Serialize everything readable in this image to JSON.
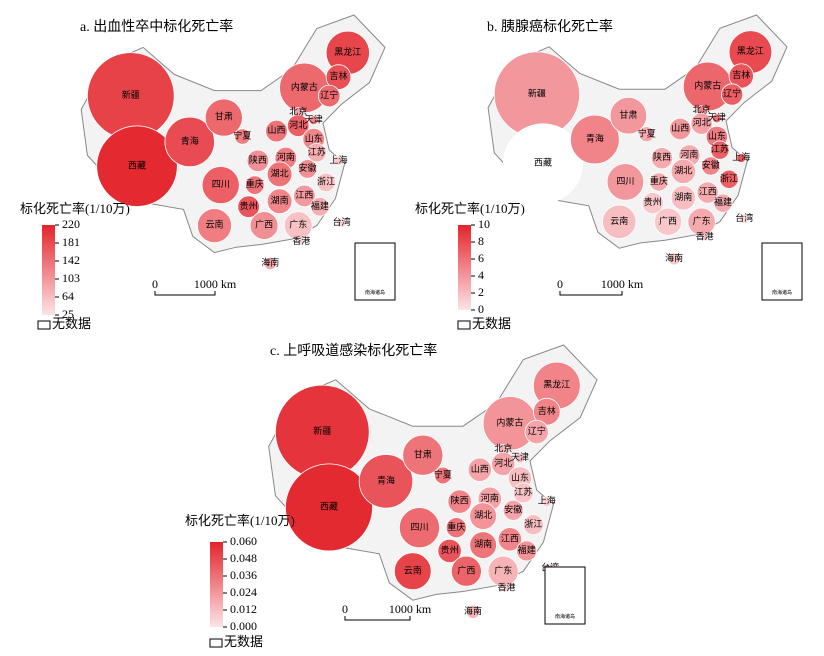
{
  "maps": [
    {
      "title": "a. 出血性卒中标化死亡率",
      "legend_title": "标化死亡率(1/10万)",
      "ticks": [
        220,
        181,
        142,
        103,
        64,
        25
      ],
      "lim": [
        25,
        220
      ],
      "color_range": [
        "#fce4e6",
        "#e3242b"
      ],
      "no_data_color": "#ffffff",
      "no_data": "无数据",
      "scale_labels": [
        "0",
        "1000 km"
      ],
      "inset": "南海诸岛",
      "regions": [
        {
          "name": "新疆",
          "value": 190
        },
        {
          "name": "西藏",
          "value": 215
        },
        {
          "name": "青海",
          "value": 180
        },
        {
          "name": "甘肃",
          "value": 150
        },
        {
          "name": "内蒙古",
          "value": 150
        },
        {
          "name": "黑龙江",
          "value": 185
        },
        {
          "name": "吉林",
          "value": 175
        },
        {
          "name": "辽宁",
          "value": 150
        },
        {
          "name": "北京",
          "value": 90
        },
        {
          "name": "天津",
          "value": 120
        },
        {
          "name": "河北",
          "value": 160
        },
        {
          "name": "山西",
          "value": 140
        },
        {
          "name": "山东",
          "value": 120
        },
        {
          "name": "宁夏",
          "value": 130
        },
        {
          "name": "陕西",
          "value": 110
        },
        {
          "name": "河南",
          "value": 130
        },
        {
          "name": "江苏",
          "value": 80
        },
        {
          "name": "上海",
          "value": 50
        },
        {
          "name": "安徽",
          "value": 110
        },
        {
          "name": "湖北",
          "value": 140
        },
        {
          "name": "四川",
          "value": 160
        },
        {
          "name": "重庆",
          "value": 140
        },
        {
          "name": "浙江",
          "value": 60
        },
        {
          "name": "江西",
          "value": 100
        },
        {
          "name": "湖南",
          "value": 120
        },
        {
          "name": "贵州",
          "value": 170
        },
        {
          "name": "云南",
          "value": 130
        },
        {
          "name": "广西",
          "value": 110
        },
        {
          "name": "广东",
          "value": 60
        },
        {
          "name": "福建",
          "value": 80
        },
        {
          "name": "台湾",
          "value": 40
        },
        {
          "name": "香港",
          "value": 40
        },
        {
          "name": "海南",
          "value": 90
        }
      ]
    },
    {
      "title": "b. 胰腺癌标化死亡率",
      "legend_title": "标化死亡率(1/10万)",
      "ticks": [
        10,
        8,
        6,
        4,
        2,
        0
      ],
      "lim": [
        0,
        10
      ],
      "color_range": [
        "#fce4e6",
        "#e3242b"
      ],
      "no_data_color": "#ffffff",
      "no_data": "无数据",
      "scale_labels": [
        "0",
        "1000 km"
      ],
      "inset": "南海诸岛",
      "regions": [
        {
          "name": "新疆",
          "value": 4
        },
        {
          "name": "西藏",
          "value": null
        },
        {
          "name": "青海",
          "value": 5
        },
        {
          "name": "甘肃",
          "value": 4
        },
        {
          "name": "内蒙古",
          "value": 6.5
        },
        {
          "name": "黑龙江",
          "value": 8
        },
        {
          "name": "吉林",
          "value": 7.5
        },
        {
          "name": "辽宁",
          "value": 7
        },
        {
          "name": "北京",
          "value": 5
        },
        {
          "name": "天津",
          "value": 6
        },
        {
          "name": "河北",
          "value": 3.5
        },
        {
          "name": "山西",
          "value": 4
        },
        {
          "name": "山东",
          "value": 5.5
        },
        {
          "name": "宁夏",
          "value": 3
        },
        {
          "name": "陕西",
          "value": 3
        },
        {
          "name": "河南",
          "value": 3
        },
        {
          "name": "江苏",
          "value": 7
        },
        {
          "name": "上海",
          "value": 7.5
        },
        {
          "name": "安徽",
          "value": 5
        },
        {
          "name": "湖北",
          "value": 3
        },
        {
          "name": "四川",
          "value": 4
        },
        {
          "name": "重庆",
          "value": 3
        },
        {
          "name": "浙江",
          "value": 7
        },
        {
          "name": "江西",
          "value": 3
        },
        {
          "name": "湖南",
          "value": 2
        },
        {
          "name": "贵州",
          "value": 1.5
        },
        {
          "name": "云南",
          "value": 2
        },
        {
          "name": "广西",
          "value": 1.5
        },
        {
          "name": "广东",
          "value": 3
        },
        {
          "name": "福建",
          "value": 3
        },
        {
          "name": "台湾",
          "value": 0.5
        },
        {
          "name": "香港",
          "value": 2
        },
        {
          "name": "海南",
          "value": 1.5
        }
      ]
    },
    {
      "title": "c. 上呼吸道感染标化死亡率",
      "legend_title": "标化死亡率(1/10万)",
      "ticks": [
        {
          "value": 0.06,
          "label": "0.060"
        },
        {
          "value": 0.048,
          "label": "0.048"
        },
        {
          "value": 0.036,
          "label": "0.036"
        },
        {
          "value": 0.024,
          "label": "0.024"
        },
        {
          "value": 0.012,
          "label": "0.012"
        },
        {
          "value": 0,
          "label": "0.000"
        }
      ],
      "lim": [
        0,
        0.06
      ],
      "color_range": [
        "#fce4e6",
        "#e3242b"
      ],
      "no_data_color": "#ffffff",
      "no_data": "无数据",
      "scale_labels": [
        "0",
        "1000 km"
      ],
      "inset": "南海诸岛",
      "regions": [
        {
          "name": "新疆",
          "value": 0.055
        },
        {
          "name": "西藏",
          "value": 0.058
        },
        {
          "name": "青海",
          "value": 0.045
        },
        {
          "name": "甘肃",
          "value": 0.035
        },
        {
          "name": "内蒙古",
          "value": 0.025
        },
        {
          "name": "黑龙江",
          "value": 0.03
        },
        {
          "name": "吉林",
          "value": 0.03
        },
        {
          "name": "辽宁",
          "value": 0.02
        },
        {
          "name": "北京",
          "value": 0.015
        },
        {
          "name": "天津",
          "value": 0.012
        },
        {
          "name": "河北",
          "value": 0.02
        },
        {
          "name": "山西",
          "value": 0.02
        },
        {
          "name": "山东",
          "value": 0.012
        },
        {
          "name": "宁夏",
          "value": 0.035
        },
        {
          "name": "陕西",
          "value": 0.03
        },
        {
          "name": "河南",
          "value": 0.02
        },
        {
          "name": "江苏",
          "value": 0.01
        },
        {
          "name": "上海",
          "value": 0.008
        },
        {
          "name": "安徽",
          "value": 0.02
        },
        {
          "name": "湖北",
          "value": 0.025
        },
        {
          "name": "四川",
          "value": 0.038
        },
        {
          "name": "重庆",
          "value": 0.035
        },
        {
          "name": "浙江",
          "value": 0.012
        },
        {
          "name": "江西",
          "value": 0.03
        },
        {
          "name": "湖南",
          "value": 0.035
        },
        {
          "name": "贵州",
          "value": 0.045
        },
        {
          "name": "云南",
          "value": 0.05
        },
        {
          "name": "广西",
          "value": 0.04
        },
        {
          "name": "广东",
          "value": 0.015
        },
        {
          "name": "福建",
          "value": 0.025
        },
        {
          "name": "台湾",
          "value": 0.005
        },
        {
          "name": "香港",
          "value": 0.01
        },
        {
          "name": "海南",
          "value": 0.015
        }
      ]
    }
  ]
}
